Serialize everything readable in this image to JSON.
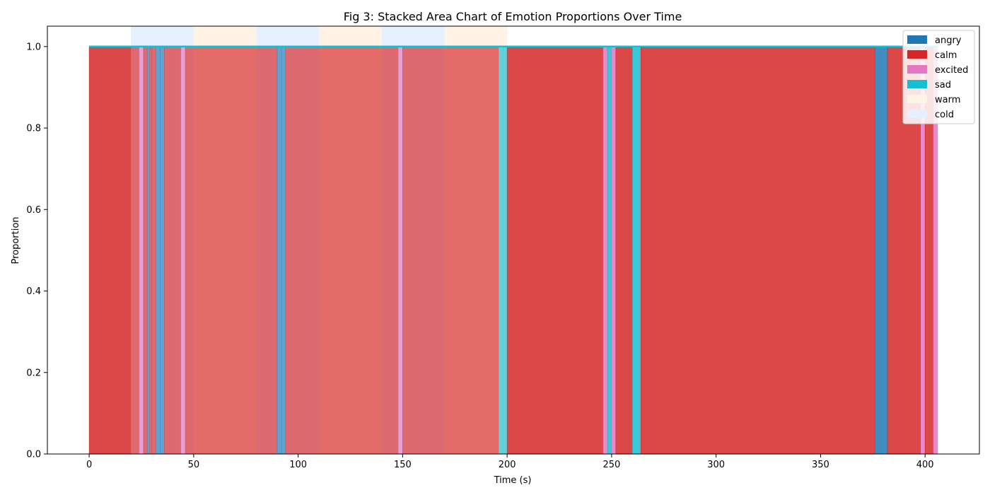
{
  "chart_data": {
    "type": "area",
    "title": "Fig 3: Stacked Area Chart of Emotion Proportions Over Time",
    "xlabel": "Time (s)",
    "ylabel": "Proportion",
    "xlim": [
      -20,
      426
    ],
    "ylim": [
      0,
      1.05
    ],
    "xticks": [
      0,
      50,
      100,
      150,
      200,
      250,
      300,
      350,
      400
    ],
    "yticks": [
      0.0,
      0.2,
      0.4,
      0.6,
      0.8,
      1.0
    ],
    "xtick_labels": [
      "0",
      "50",
      "100",
      "150",
      "200",
      "250",
      "300",
      "350",
      "400"
    ],
    "ytick_labels": [
      "0.0",
      "0.2",
      "0.4",
      "0.6",
      "0.8",
      "1.0"
    ],
    "legend_position": "upper-right",
    "series": [
      {
        "name": "angry",
        "color": "#1f77b4"
      },
      {
        "name": "calm",
        "color": "#d62728"
      },
      {
        "name": "excited",
        "color": "#e377c2"
      },
      {
        "name": "sad",
        "color": "#17becf"
      }
    ],
    "segments": [
      {
        "start": 0,
        "end": 24,
        "emotion": "calm"
      },
      {
        "start": 24,
        "end": 26,
        "emotion": "excited"
      },
      {
        "start": 26,
        "end": 28,
        "emotion": "calm"
      },
      {
        "start": 28,
        "end": 29,
        "emotion": "angry"
      },
      {
        "start": 29,
        "end": 30,
        "emotion": "calm"
      },
      {
        "start": 30,
        "end": 32,
        "emotion": "calm"
      },
      {
        "start": 32,
        "end": 34,
        "emotion": "angry"
      },
      {
        "start": 34,
        "end": 36,
        "emotion": "angry"
      },
      {
        "start": 36,
        "end": 44,
        "emotion": "calm"
      },
      {
        "start": 44,
        "end": 46,
        "emotion": "excited"
      },
      {
        "start": 46,
        "end": 90,
        "emotion": "calm"
      },
      {
        "start": 90,
        "end": 92,
        "emotion": "angry"
      },
      {
        "start": 92,
        "end": 94,
        "emotion": "angry"
      },
      {
        "start": 94,
        "end": 148,
        "emotion": "calm"
      },
      {
        "start": 148,
        "end": 150,
        "emotion": "excited"
      },
      {
        "start": 150,
        "end": 196,
        "emotion": "calm"
      },
      {
        "start": 196,
        "end": 198,
        "emotion": "sad"
      },
      {
        "start": 198,
        "end": 200,
        "emotion": "sad"
      },
      {
        "start": 200,
        "end": 246,
        "emotion": "calm"
      },
      {
        "start": 246,
        "end": 248,
        "emotion": "excited"
      },
      {
        "start": 248,
        "end": 250,
        "emotion": "sad"
      },
      {
        "start": 250,
        "end": 252,
        "emotion": "excited"
      },
      {
        "start": 252,
        "end": 260,
        "emotion": "calm"
      },
      {
        "start": 260,
        "end": 264,
        "emotion": "sad"
      },
      {
        "start": 264,
        "end": 376,
        "emotion": "calm"
      },
      {
        "start": 376,
        "end": 382,
        "emotion": "angry"
      },
      {
        "start": 382,
        "end": 398,
        "emotion": "calm"
      },
      {
        "start": 398,
        "end": 400,
        "emotion": "excited"
      },
      {
        "start": 400,
        "end": 404,
        "emotion": "calm"
      },
      {
        "start": 404,
        "end": 406,
        "emotion": "excited"
      }
    ],
    "background_bands": [
      {
        "start": 20,
        "end": 50,
        "type": "cold"
      },
      {
        "start": 50,
        "end": 80,
        "type": "warm"
      },
      {
        "start": 80,
        "end": 110,
        "type": "cold"
      },
      {
        "start": 110,
        "end": 140,
        "type": "warm"
      },
      {
        "start": 140,
        "end": 170,
        "type": "cold"
      },
      {
        "start": 170,
        "end": 200,
        "type": "warm"
      }
    ],
    "legend": [
      {
        "label": "angry",
        "color": "#1f77b4"
      },
      {
        "label": "calm",
        "color": "#d62728"
      },
      {
        "label": "excited",
        "color": "#e377c2"
      },
      {
        "label": "sad",
        "color": "#17becf"
      },
      {
        "label": "warm",
        "color": "#fff3e6"
      },
      {
        "label": "cold",
        "color": "#e6f0ff"
      }
    ]
  }
}
